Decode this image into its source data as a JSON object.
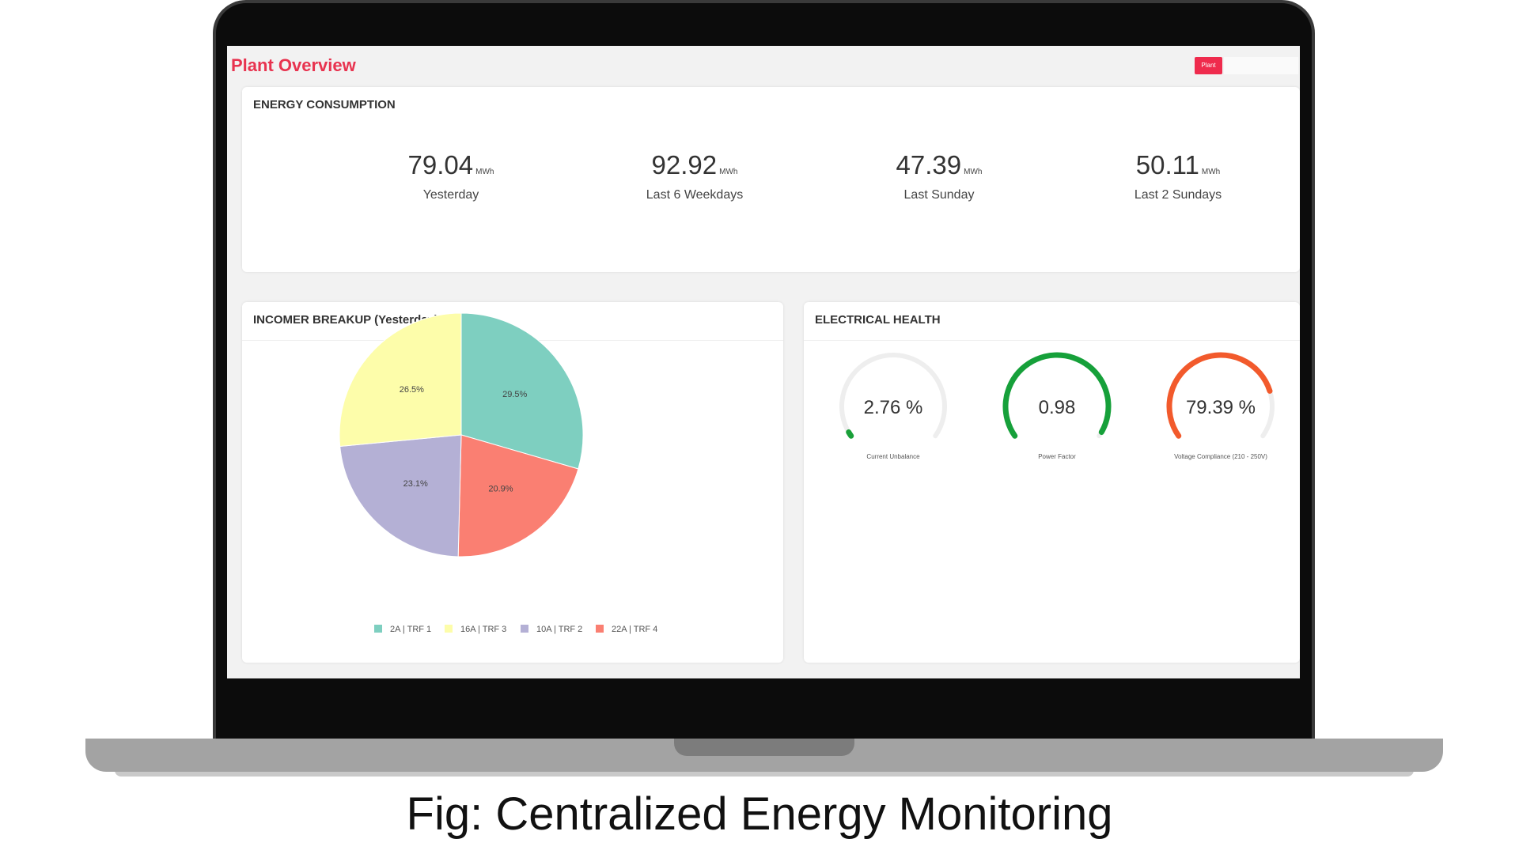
{
  "header": {
    "title": "Plant Overview",
    "plant_button": "Plant"
  },
  "energy": {
    "title": "ENERGY CONSUMPTION",
    "kpis": [
      {
        "value": "79.04",
        "unit": "MWh",
        "label": "Yesterday"
      },
      {
        "value": "92.92",
        "unit": "MWh",
        "label": "Last 6 Weekdays"
      },
      {
        "value": "47.39",
        "unit": "MWh",
        "label": "Last Sunday"
      },
      {
        "value": "50.11",
        "unit": "MWh",
        "label": "Last 2 Sundays"
      }
    ]
  },
  "incomer": {
    "title": "INCOMER BREAKUP (Yesterday)"
  },
  "chart_data": {
    "type": "pie",
    "title": "INCOMER BREAKUP (Yesterday)",
    "slices": [
      {
        "name": "2A | TRF 1",
        "value": 29.5,
        "label": "29.5%",
        "color": "#7ecfc0"
      },
      {
        "name": "22A | TRF 4",
        "value": 20.9,
        "label": "20.9%",
        "color": "#fa7f72"
      },
      {
        "name": "10A | TRF 2",
        "value": 23.1,
        "label": "23.1%",
        "color": "#b4b0d5"
      },
      {
        "name": "16A | TRF 3",
        "value": 26.5,
        "label": "26.5%",
        "color": "#fdfdaa"
      }
    ],
    "legend": [
      "2A | TRF 1",
      "16A | TRF 3",
      "10A | TRF 2",
      "22A | TRF 4"
    ],
    "legend_position": "bottom"
  },
  "health": {
    "title": "ELECTRICAL HEALTH",
    "gauges": [
      {
        "value": "2.76 %",
        "fraction": 0.02,
        "label": "Current Unbalance",
        "color": "#1aa039"
      },
      {
        "value": "0.98",
        "fraction": 0.98,
        "label": "Power Factor",
        "color": "#16a03a"
      },
      {
        "value": "79.39 %",
        "fraction": 0.79,
        "label": "Voltage Compliance (210 - 250V)",
        "color": "#f25a2c"
      }
    ]
  },
  "caption": "Fig: Centralized Energy Monitoring"
}
